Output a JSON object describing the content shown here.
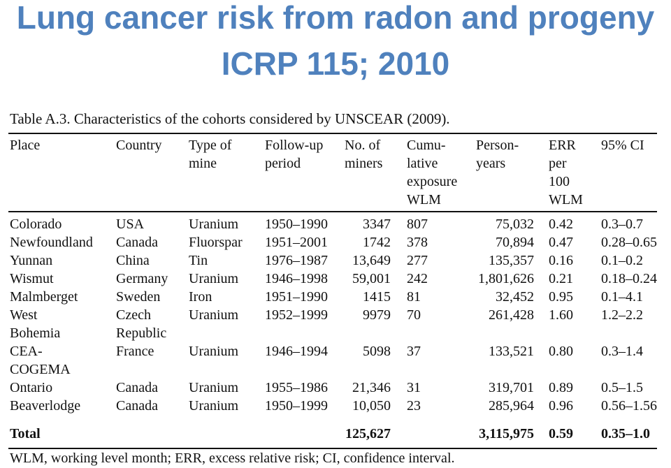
{
  "title_line1": "Lung cancer risk from radon and progeny",
  "title_line2": "ICRP 115; 2010",
  "caption": "Table A.3. Characteristics of the cohorts considered by UNSCEAR (2009).",
  "headers": {
    "place": "Place",
    "country": "Country",
    "type": [
      "Type of",
      "mine"
    ],
    "follow": [
      "Follow-up",
      "period"
    ],
    "miners": [
      "No. of",
      "miners"
    ],
    "cumu": [
      "Cumu-",
      "lative",
      "exposure",
      "WLM"
    ],
    "person": [
      "Person-",
      "years"
    ],
    "err": [
      "ERR",
      "per",
      "100",
      "WLM"
    ],
    "ci": "95% CI"
  },
  "rows": [
    {
      "place": [
        "Colorado"
      ],
      "country": [
        "USA"
      ],
      "type": "Uranium",
      "period": "1950–1990",
      "miners": "3347",
      "wlm": "807",
      "py": "75,032",
      "err": "0.42",
      "ci": "0.3–0.7"
    },
    {
      "place": [
        "Newfoundland"
      ],
      "country": [
        "Canada"
      ],
      "type": "Fluorspar",
      "period": "1951–2001",
      "miners": "1742",
      "wlm": "378",
      "py": "70,894",
      "err": "0.47",
      "ci": "0.28–0.65"
    },
    {
      "place": [
        "Yunnan"
      ],
      "country": [
        "China"
      ],
      "type": "Tin",
      "period": "1976–1987",
      "miners": "13,649",
      "wlm": "277",
      "py": "135,357",
      "err": "0.16",
      "ci": "0.1–0.2"
    },
    {
      "place": [
        "Wismut"
      ],
      "country": [
        "Germany"
      ],
      "type": "Uranium",
      "period": "1946–1998",
      "miners": "59,001",
      "wlm": "242",
      "py": "1,801,626",
      "err": "0.21",
      "ci": "0.18–0.24"
    },
    {
      "place": [
        "Malmberget"
      ],
      "country": [
        "Sweden"
      ],
      "type": "Iron",
      "period": "1951–1990",
      "miners": "1415",
      "wlm": "81",
      "py": "32,452",
      "err": "0.95",
      "ci": "0.1–4.1"
    },
    {
      "place": [
        "West",
        "Bohemia"
      ],
      "country": [
        "Czech",
        "Republic"
      ],
      "type": "Uranium",
      "period": "1952–1999",
      "miners": "9979",
      "wlm": "70",
      "py": "261,428",
      "err": "1.60",
      "ci": "1.2–2.2"
    },
    {
      "place": [
        "CEA-",
        "COGEMA"
      ],
      "country": [
        "France"
      ],
      "type": "Uranium",
      "period": "1946–1994",
      "miners": "5098",
      "wlm": "37",
      "py": "133,521",
      "err": "0.80",
      "ci": "0.3–1.4"
    },
    {
      "place": [
        "Ontario"
      ],
      "country": [
        "Canada"
      ],
      "type": "Uranium",
      "period": "1955–1986",
      "miners": "21,346",
      "wlm": "31",
      "py": "319,701",
      "err": "0.89",
      "ci": "0.5–1.5"
    },
    {
      "place": [
        "Beaverlodge"
      ],
      "country": [
        "Canada"
      ],
      "type": "Uranium",
      "period": "1950–1999",
      "miners": "10,050",
      "wlm": "23",
      "py": "285,964",
      "err": "0.96",
      "ci": "0.56–1.56"
    }
  ],
  "total": {
    "label": "Total",
    "miners": "125,627",
    "py": "3,115,975",
    "err": "0.59",
    "ci": "0.35–1.0"
  },
  "footnote": "WLM, working level month; ERR, excess relative risk; CI, confidence interval."
}
